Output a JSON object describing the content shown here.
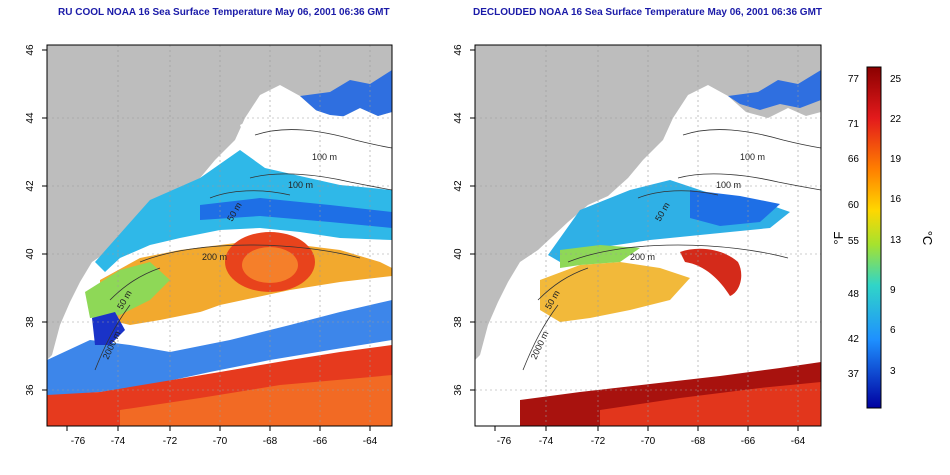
{
  "panels": [
    {
      "title": "RU COOL NOAA 16 Sea Surface Temperature May 06, 2001 06:36 GMT",
      "contours": [
        "100 m",
        "100 m",
        "50 m",
        "200 m",
        "50 m",
        "2000 m"
      ]
    },
    {
      "title": "DECLOUDED NOAA 16 Sea Surface Temperature May 06, 2001 06:36 GMT",
      "contours": [
        "100 m",
        "100 m",
        "50 m",
        "200 m",
        "50 m",
        "2000 m"
      ]
    }
  ],
  "axes": {
    "x_ticks": [
      "-76",
      "-74",
      "-72",
      "-70",
      "-68",
      "-66",
      "-64"
    ],
    "y_ticks": [
      "46",
      "44",
      "42",
      "40",
      "38",
      "36"
    ]
  },
  "colorbar": {
    "fahrenheit_label": "°F",
    "celsius_label": "°C",
    "fahrenheit_ticks": [
      "77",
      "71",
      "66",
      "60",
      "55",
      "48",
      "42",
      "37"
    ],
    "celsius_ticks": [
      "25",
      "22",
      "19",
      "16",
      "13",
      "9",
      "6",
      "3"
    ],
    "gradient_colors": [
      "#8b0000",
      "#e31a1c",
      "#ff7f00",
      "#ffd700",
      "#a6e22e",
      "#30d5c8",
      "#1e90ff",
      "#0000a0"
    ]
  },
  "colors": {
    "land": "#bdbdbd",
    "title": "#1a1aa8",
    "cloud": "#ffffff"
  }
}
